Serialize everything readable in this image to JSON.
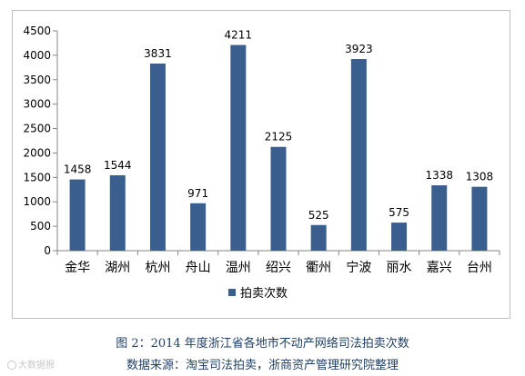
{
  "chart_data": {
    "type": "bar",
    "categories": [
      "金华",
      "湖州",
      "杭州",
      "舟山",
      "温州",
      "绍兴",
      "衢州",
      "宁波",
      "丽水",
      "嘉兴",
      "台州"
    ],
    "series": [
      {
        "name": "拍卖次数",
        "values": [
          1458,
          1544,
          3831,
          971,
          4211,
          2125,
          525,
          3923,
          575,
          1338,
          1308
        ],
        "color": "#3a5f8f"
      }
    ],
    "ylim": [
      0,
      4500
    ],
    "yticks": [
      0,
      500,
      1000,
      1500,
      2000,
      2500,
      3000,
      3500,
      4000,
      4500
    ],
    "grid": false,
    "legend_position": "bottom",
    "data_labels": true
  },
  "caption": {
    "title": "图 2：2014 年度浙江省各地市不动产网络司法拍卖次数",
    "source": "数据来源：淘宝司法拍卖，浙商资产管理研究院整理"
  },
  "watermark": {
    "text": "大数据报"
  }
}
